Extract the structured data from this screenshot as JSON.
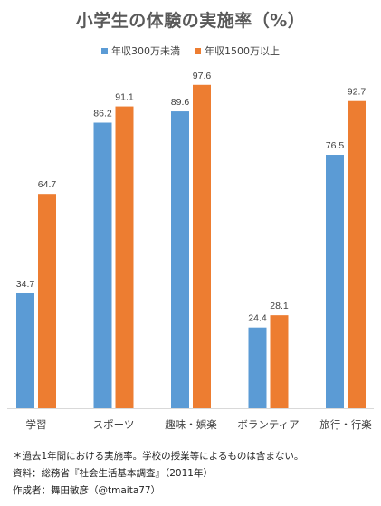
{
  "chart_data": {
    "type": "bar",
    "title": "小学生の体験の実施率（%）",
    "categories": [
      "学習",
      "スポーツ",
      "趣味・娯楽",
      "ボランティア",
      "旅行・行楽"
    ],
    "series": [
      {
        "name": "年収300万未満",
        "values": [
          34.7,
          86.2,
          89.6,
          24.4,
          76.5
        ],
        "color": "#5B9BD5"
      },
      {
        "name": "年収1500万以上",
        "values": [
          64.7,
          91.1,
          97.6,
          28.1,
          92.7
        ],
        "color": "#ED7D31"
      }
    ],
    "ylim": [
      0,
      100
    ],
    "grid": false,
    "legend_position": "top"
  },
  "notes": {
    "line1": "＊過去1年間における実施率。学校の授業等によるものは含まない。",
    "line2": "資料：総務省『社会生活基本調査』（2011年）",
    "line3": "作成者：舞田敏彦（@tmaita77）"
  }
}
